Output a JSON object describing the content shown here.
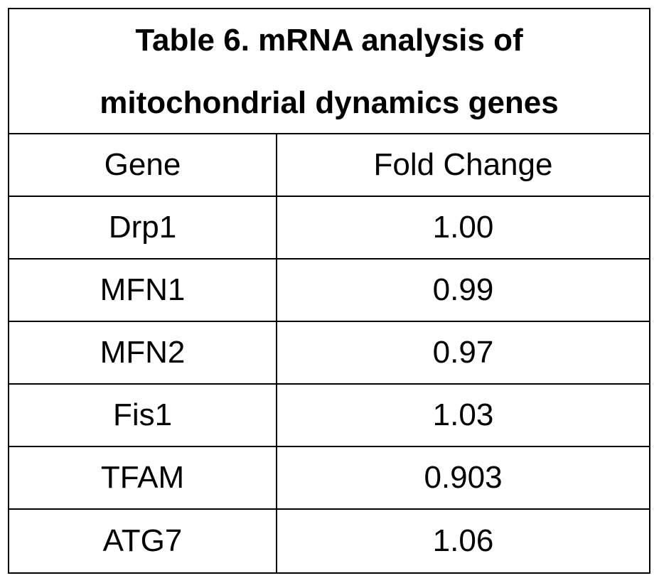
{
  "table": {
    "title_line1": "Table 6.  mRNA analysis of",
    "title_line2": "mitochondrial dynamics genes",
    "headers": {
      "gene": "Gene",
      "fold_change": "Fold Change"
    },
    "rows": [
      {
        "gene": "Drp1",
        "fold_change": "1.00"
      },
      {
        "gene": "MFN1",
        "fold_change": "0.99"
      },
      {
        "gene": "MFN2",
        "fold_change": "0.97"
      },
      {
        "gene": "Fis1",
        "fold_change": "1.03"
      },
      {
        "gene": "TFAM",
        "fold_change": "0.903"
      },
      {
        "gene": "ATG7",
        "fold_change": "1.06"
      }
    ]
  }
}
